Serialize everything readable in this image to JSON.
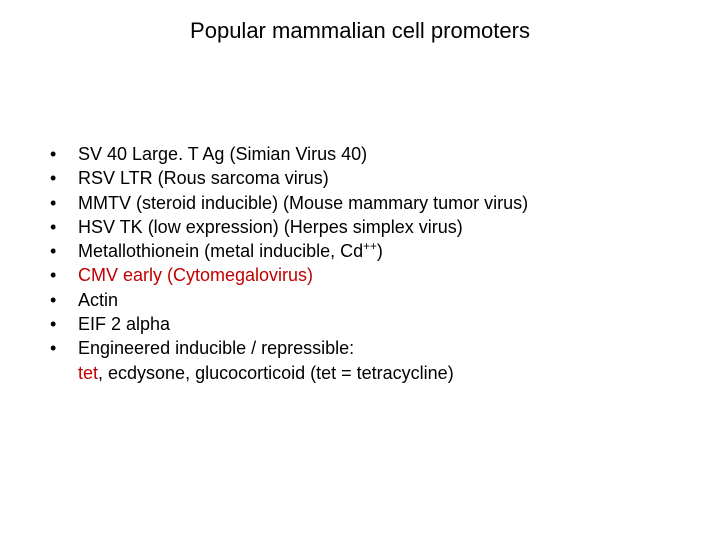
{
  "title": "Popular mammalian cell promoters",
  "bullet_marker": "•",
  "items": [
    {
      "text": "SV 40 Large. T Ag  (Simian Virus 40)"
    },
    {
      "text": "RSV LTR (Rous sarcoma virus)"
    },
    {
      "text": "MMTV (steroid inducible)  (Mouse mammary tumor virus)"
    },
    {
      "text": "HSV TK (low expression)   (Herpes simplex virus)"
    },
    {
      "pre": "Metallothionein (metal inducible, Cd",
      "sup": "++",
      "post": ")"
    },
    {
      "text": "CMV early  (Cytomegalovirus)",
      "red": true
    },
    {
      "text": "Actin"
    },
    {
      "text": "EIF 2 alpha"
    },
    {
      "text": "Engineered inducible / repressible:"
    }
  ],
  "continuation": {
    "prefix_space": " ",
    "red_word": "tet",
    "rest": ", ecdysone, glucocorticoid  (tet = tetracycline)"
  },
  "colors": {
    "text": "#000000",
    "red": "#c00000",
    "background": "#ffffff"
  },
  "fontsize": {
    "title": 22,
    "body": 18
  }
}
